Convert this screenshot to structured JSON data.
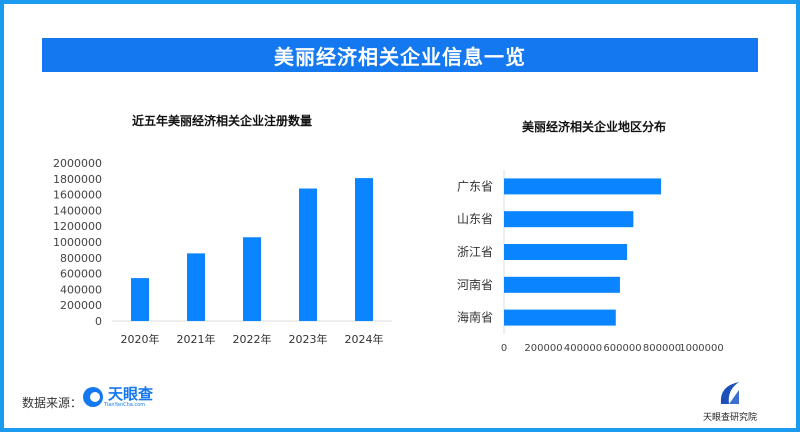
{
  "header": {
    "title": "美丽经济相关企业信息一览"
  },
  "chart_data": [
    {
      "type": "bar",
      "title": "近五年美丽经济相关企业注册数量",
      "categories": [
        "2020年",
        "2021年",
        "2022年",
        "2023年",
        "2024年"
      ],
      "values": [
        543000,
        856000,
        1060000,
        1677000,
        1809000
      ],
      "ylim": [
        0,
        2000000
      ],
      "yticks": [
        "0",
        "200000",
        "400000",
        "600000",
        "800000",
        "1000000",
        "1200000",
        "1400000",
        "1600000",
        "1800000",
        "2000000"
      ],
      "grid": false,
      "color": "#0a84ff"
    },
    {
      "type": "bar",
      "orientation": "horizontal",
      "title": "美丽经济相关企业地区分布",
      "categories": [
        "广东省",
        "山东省",
        "浙江省",
        "河南省",
        "海南省"
      ],
      "values": [
        795000,
        655000,
        623000,
        587000,
        566000
      ],
      "xlim": [
        0,
        1000000
      ],
      "xticks": [
        "0",
        "200000",
        "400000",
        "600000",
        "800000",
        "1000000"
      ],
      "grid": false,
      "color": "#0a84ff"
    }
  ],
  "footer": {
    "source_label": "数据来源：",
    "source_logo": "天眼查",
    "source_logo_sub": "TianYanCha.com",
    "institute": "天眼查研究院"
  }
}
